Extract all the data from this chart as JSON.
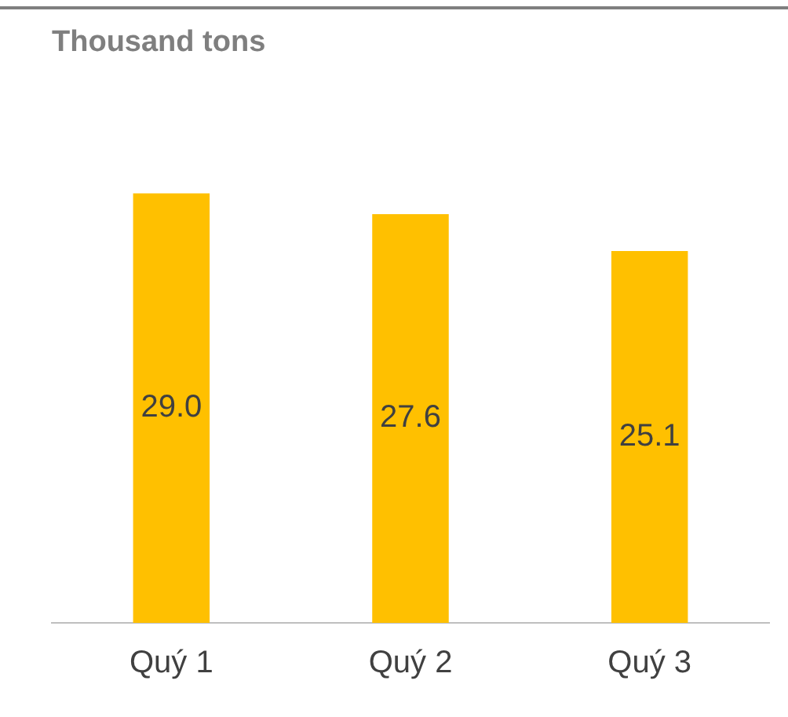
{
  "chart_data": {
    "type": "bar",
    "title": "Thousand tons",
    "categories": [
      "Quý 1",
      "Quý 2",
      "Quý 3"
    ],
    "values": [
      29.0,
      27.6,
      25.1
    ],
    "color": "#ffc000",
    "value_labels": [
      "29.0",
      "27.6",
      "25.1"
    ]
  }
}
